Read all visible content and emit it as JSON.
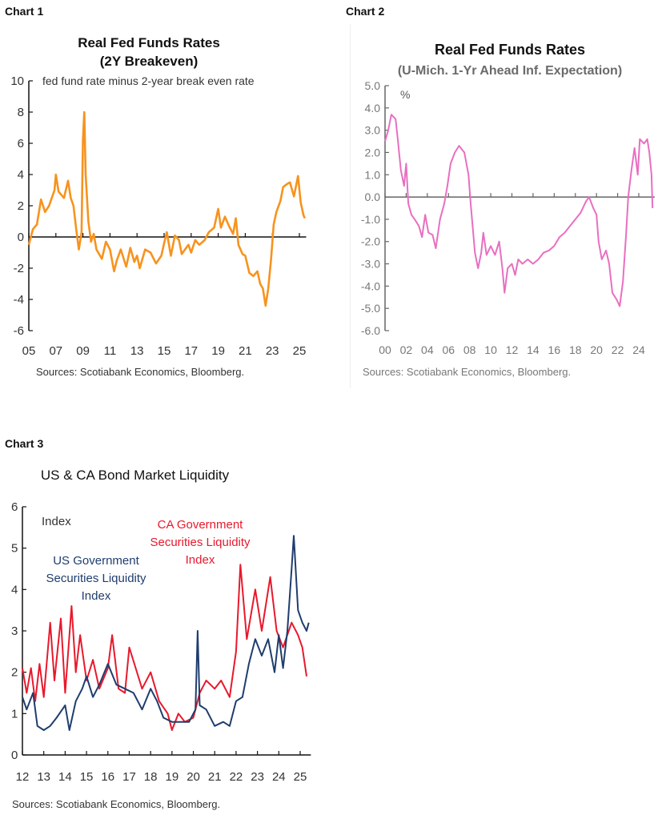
{
  "labels": {
    "chart1": "Chart 1",
    "chart2": "Chart 2",
    "chart3": "Chart 3"
  },
  "chart_data": [
    {
      "type": "line",
      "title": "Real Fed Funds Rates",
      "subtitle": "(2Y Breakeven)",
      "annotation": "fed fund rate minus 2-year break even rate",
      "source": "Sources: Scotiabank Economics, Bloomberg.",
      "xlim": [
        2005,
        2025.5
      ],
      "ylim": [
        -6,
        10
      ],
      "yticks": [
        "-6",
        "-4",
        "-2",
        "0",
        "2",
        "4",
        "6",
        "8",
        "10"
      ],
      "xticks": [
        "05",
        "07",
        "09",
        "11",
        "13",
        "15",
        "17",
        "19",
        "21",
        "23",
        "25"
      ],
      "color": "#f7931e",
      "series": [
        {
          "x": [
            2005.0,
            2005.3,
            2005.6,
            2005.9,
            2006.2,
            2006.5,
            2006.9,
            2007.0,
            2007.2,
            2007.6,
            2007.9,
            2008.1,
            2008.3,
            2008.5,
            2008.7,
            2008.9,
            2009.0,
            2009.1,
            2009.2,
            2009.4,
            2009.6,
            2009.8,
            2010.0,
            2010.4,
            2010.7,
            2011.0,
            2011.3,
            2011.5,
            2011.8,
            2012.2,
            2012.5,
            2012.8,
            2013.0,
            2013.2,
            2013.6,
            2014.0,
            2014.4,
            2014.8,
            2015.0,
            2015.2,
            2015.5,
            2015.8,
            2016.1,
            2016.3,
            2016.8,
            2017.0,
            2017.3,
            2017.6,
            2018.0,
            2018.3,
            2018.7,
            2019.0,
            2019.2,
            2019.5,
            2019.8,
            2020.1,
            2020.3,
            2020.5,
            2020.8,
            2021.0,
            2021.3,
            2021.6,
            2021.9,
            2022.1,
            2022.3,
            2022.5,
            2022.7,
            2022.9,
            2023.1,
            2023.3,
            2023.6,
            2023.8,
            2024.1,
            2024.3,
            2024.6,
            2024.9,
            2025.1,
            2025.3,
            2025.4
          ],
          "y": [
            -0.5,
            0.5,
            0.8,
            2.4,
            1.6,
            2.0,
            3.0,
            4.0,
            2.9,
            2.5,
            3.6,
            2.5,
            2.0,
            0.5,
            -0.8,
            0.3,
            6.2,
            8.0,
            4.0,
            1.0,
            -0.3,
            0.2,
            -0.8,
            -1.4,
            -0.3,
            -0.8,
            -2.2,
            -1.5,
            -0.8,
            -1.9,
            -0.7,
            -1.6,
            -1.2,
            -2.0,
            -0.8,
            -1.0,
            -1.7,
            -1.2,
            -0.4,
            0.3,
            -1.2,
            0.1,
            -0.2,
            -1.1,
            -0.5,
            -1.0,
            -0.2,
            -0.5,
            -0.2,
            0.3,
            0.6,
            1.8,
            0.6,
            1.3,
            0.7,
            0.2,
            1.2,
            -0.5,
            -1.1,
            -1.2,
            -2.3,
            -2.5,
            -2.2,
            -3.0,
            -3.3,
            -4.4,
            -3.3,
            -1.5,
            0.8,
            1.6,
            2.3,
            3.2,
            3.4,
            3.5,
            2.6,
            3.9,
            2.2,
            1.4,
            1.2
          ]
        }
      ]
    },
    {
      "type": "line",
      "title": "Real Fed Funds Rates",
      "subtitle": "(U-Mich. 1-Yr Ahead Inf. Expectation)",
      "annotation": "%",
      "source": "Sources: Scotiabank Economics, Bloomberg.",
      "xlim": [
        2000,
        2025.5
      ],
      "ylim": [
        -6,
        5
      ],
      "yticks": [
        "-6.0",
        "-5.0",
        "-4.0",
        "-3.0",
        "-2.0",
        "-1.0",
        "0.0",
        "1.0",
        "2.0",
        "3.0",
        "4.0",
        "5.0"
      ],
      "xticks": [
        "00",
        "02",
        "04",
        "06",
        "08",
        "10",
        "12",
        "14",
        "16",
        "18",
        "20",
        "22",
        "24"
      ],
      "color": "#e86fc0",
      "series": [
        {
          "x": [
            2000.0,
            2000.3,
            2000.6,
            2001.0,
            2001.2,
            2001.5,
            2001.8,
            2002.0,
            2002.2,
            2002.5,
            2002.8,
            2003.2,
            2003.5,
            2003.8,
            2004.1,
            2004.5,
            2004.8,
            2005.2,
            2005.6,
            2005.9,
            2006.2,
            2006.6,
            2007.0,
            2007.5,
            2007.9,
            2008.1,
            2008.5,
            2008.8,
            2009.1,
            2009.3,
            2009.6,
            2010.0,
            2010.4,
            2010.8,
            2011.1,
            2011.3,
            2011.6,
            2012.0,
            2012.3,
            2012.6,
            2013.0,
            2013.5,
            2014.0,
            2014.5,
            2015.0,
            2015.5,
            2016.0,
            2016.5,
            2017.0,
            2017.5,
            2018.0,
            2018.5,
            2019.0,
            2019.3,
            2019.7,
            2020.0,
            2020.2,
            2020.5,
            2020.9,
            2021.2,
            2021.5,
            2021.9,
            2022.2,
            2022.5,
            2022.8,
            2023.0,
            2023.3,
            2023.6,
            2023.9,
            2024.1,
            2024.5,
            2024.8,
            2025.0,
            2025.2,
            2025.3
          ],
          "y": [
            2.5,
            3.0,
            3.7,
            3.5,
            2.6,
            1.2,
            0.5,
            1.5,
            -0.3,
            -0.8,
            -1.0,
            -1.3,
            -1.8,
            -0.8,
            -1.6,
            -1.7,
            -2.3,
            -1.0,
            -0.3,
            0.5,
            1.5,
            2.0,
            2.3,
            2.0,
            1.0,
            -0.3,
            -2.5,
            -3.2,
            -2.5,
            -1.6,
            -2.6,
            -2.2,
            -2.6,
            -2.0,
            -3.2,
            -4.3,
            -3.2,
            -3.0,
            -3.5,
            -2.8,
            -3.0,
            -2.8,
            -3.0,
            -2.8,
            -2.5,
            -2.4,
            -2.2,
            -1.8,
            -1.6,
            -1.3,
            -1.0,
            -0.7,
            -0.2,
            0.0,
            -0.5,
            -0.8,
            -2.0,
            -2.8,
            -2.4,
            -3.0,
            -4.3,
            -4.6,
            -4.9,
            -3.8,
            -1.7,
            0.0,
            1.2,
            2.2,
            1.0,
            2.6,
            2.4,
            2.6,
            2.0,
            1.0,
            -0.5
          ]
        }
      ]
    },
    {
      "type": "line",
      "title": "US & CA Bond Market Liquidity",
      "annotation": "Index",
      "source": "Sources: Scotiabank Economics, Bloomberg.",
      "xlim": [
        2012,
        2025.5
      ],
      "ylim": [
        0,
        6
      ],
      "yticks": [
        "0",
        "1",
        "2",
        "3",
        "4",
        "5",
        "6"
      ],
      "xticks": [
        "12",
        "13",
        "14",
        "15",
        "16",
        "17",
        "18",
        "19",
        "20",
        "21",
        "22",
        "23",
        "24",
        "25"
      ],
      "series": [
        {
          "name": "CA Government Securities Liquidity Index",
          "name_lines": [
            "CA Government",
            "Securities Liquidity",
            "Index"
          ],
          "color": "#e8192c",
          "x": [
            2012.0,
            2012.2,
            2012.4,
            2012.6,
            2012.8,
            2013.0,
            2013.3,
            2013.5,
            2013.8,
            2014.0,
            2014.3,
            2014.5,
            2014.7,
            2015.0,
            2015.3,
            2015.6,
            2016.0,
            2016.2,
            2016.5,
            2016.8,
            2017.0,
            2017.3,
            2017.6,
            2018.0,
            2018.4,
            2018.8,
            2019.0,
            2019.3,
            2019.6,
            2020.0,
            2020.3,
            2020.6,
            2021.0,
            2021.3,
            2021.7,
            2022.0,
            2022.2,
            2022.5,
            2022.9,
            2023.2,
            2023.6,
            2023.9,
            2024.2,
            2024.6,
            2024.9,
            2025.1,
            2025.3
          ],
          "y": [
            2.1,
            1.5,
            2.1,
            1.3,
            2.2,
            1.4,
            3.2,
            1.8,
            3.3,
            1.5,
            3.6,
            2.0,
            2.9,
            1.8,
            2.3,
            1.6,
            2.1,
            2.9,
            1.6,
            1.5,
            2.6,
            2.1,
            1.6,
            2.0,
            1.3,
            1.0,
            0.6,
            1.0,
            0.8,
            0.9,
            1.5,
            1.8,
            1.6,
            1.8,
            1.4,
            2.5,
            4.6,
            2.8,
            4.0,
            3.0,
            4.3,
            3.0,
            2.6,
            3.2,
            2.9,
            2.6,
            1.9
          ]
        },
        {
          "name": "US Government Securities Liquidity Index",
          "name_lines": [
            "US Government",
            "Securities Liquidity",
            "Index"
          ],
          "color": "#1f3d6d",
          "x": [
            2012.0,
            2012.2,
            2012.5,
            2012.7,
            2013.0,
            2013.3,
            2013.6,
            2014.0,
            2014.2,
            2014.5,
            2014.8,
            2015.0,
            2015.3,
            2015.6,
            2016.0,
            2016.4,
            2016.8,
            2017.2,
            2017.6,
            2018.0,
            2018.3,
            2018.6,
            2019.0,
            2019.4,
            2019.8,
            2020.1,
            2020.2,
            2020.3,
            2020.6,
            2021.0,
            2021.4,
            2021.7,
            2022.0,
            2022.3,
            2022.6,
            2022.9,
            2023.2,
            2023.5,
            2023.8,
            2024.0,
            2024.2,
            2024.4,
            2024.6,
            2024.7,
            2024.9,
            2025.1,
            2025.3,
            2025.4
          ],
          "y": [
            1.4,
            1.1,
            1.5,
            0.7,
            0.6,
            0.7,
            0.9,
            1.2,
            0.6,
            1.3,
            1.6,
            1.9,
            1.4,
            1.7,
            2.2,
            1.7,
            1.6,
            1.5,
            1.1,
            1.6,
            1.3,
            0.9,
            0.8,
            0.8,
            0.8,
            1.1,
            3.0,
            1.2,
            1.1,
            0.7,
            0.8,
            0.7,
            1.3,
            1.4,
            2.2,
            2.8,
            2.4,
            2.8,
            2.0,
            2.9,
            2.1,
            3.0,
            4.5,
            5.3,
            3.5,
            3.2,
            3.0,
            3.2
          ]
        }
      ]
    }
  ]
}
